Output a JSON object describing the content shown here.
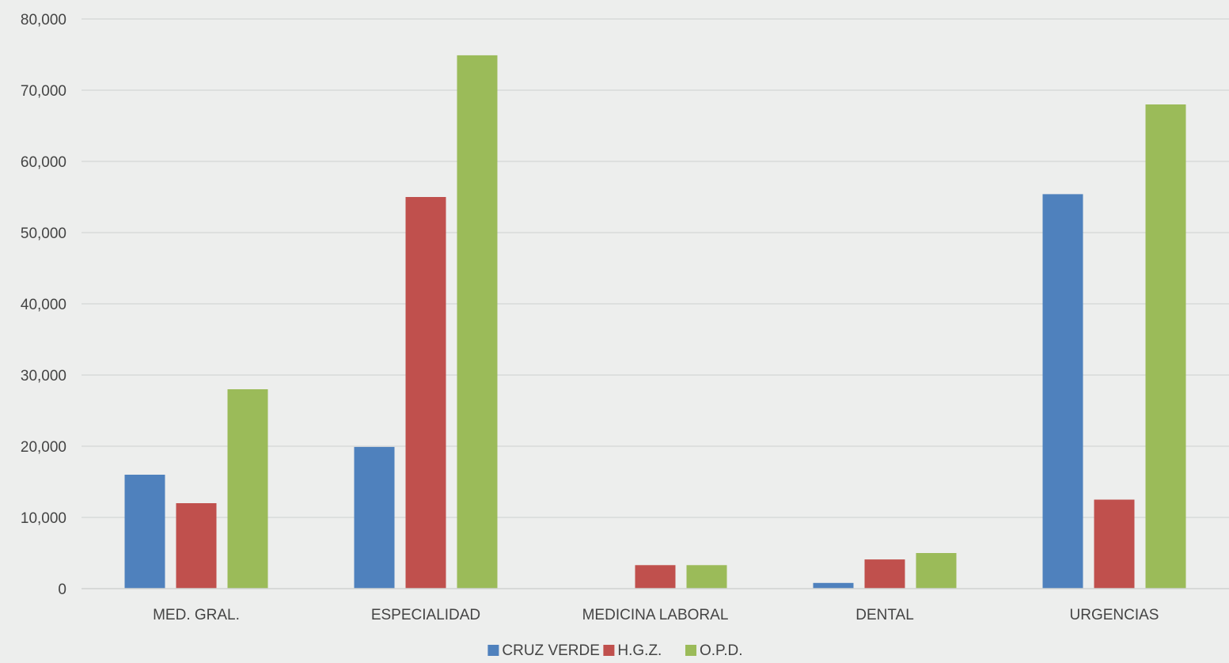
{
  "chart_data": {
    "type": "bar",
    "title": "",
    "xlabel": "",
    "ylabel": "",
    "categories": [
      "MED. GRAL.",
      "ESPECIALIDAD",
      "MEDICINA LABORAL",
      "DENTAL",
      "URGENCIAS"
    ],
    "series": [
      {
        "name": "CRUZ VERDE",
        "color": "#4f81bd",
        "values": [
          16000,
          19900,
          0,
          800,
          55400
        ]
      },
      {
        "name": "H.G.Z.",
        "color": "#c0504d",
        "values": [
          12000,
          55000,
          3300,
          4100,
          12500
        ]
      },
      {
        "name": "O.P.D.",
        "color": "#9bbb59",
        "values": [
          28000,
          74900,
          3300,
          5000,
          68000
        ]
      }
    ],
    "ylim": [
      0,
      80000
    ],
    "yticks": [
      0,
      10000,
      20000,
      30000,
      40000,
      50000,
      60000,
      70000,
      80000
    ],
    "ytick_labels": [
      "0",
      "10,000",
      "20,000",
      "30,000",
      "40,000",
      "50,000",
      "60,000",
      "70,000",
      "80,000"
    ],
    "grid": true,
    "legend_position": "bottom"
  }
}
